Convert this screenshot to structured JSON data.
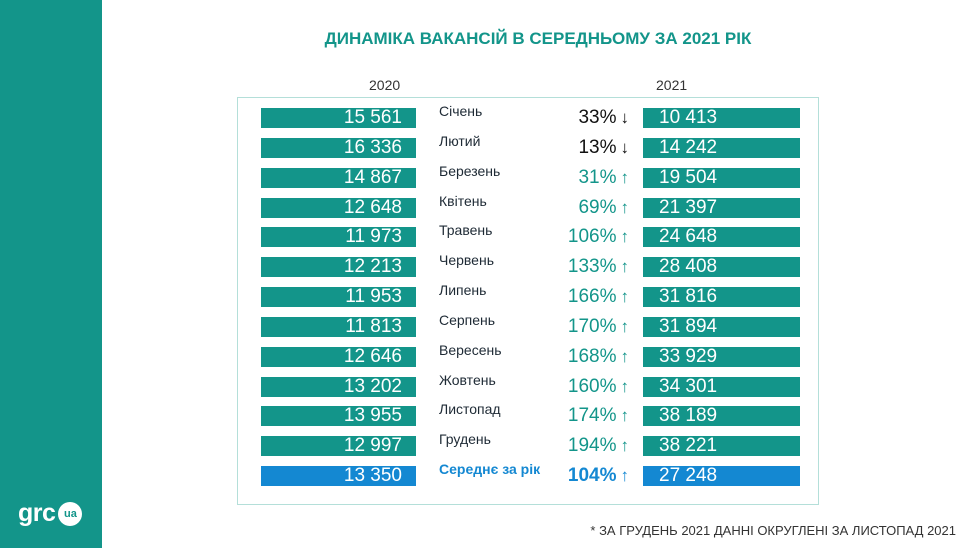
{
  "title": "ДИНАМІКА ВАКАНСІЙ В СЕРЕДНЬОМУ ЗА 2021 РІК",
  "logo": {
    "text": "grc",
    "badge": "ua"
  },
  "footnote": "* ЗА ГРУДЕНЬ 2021 ДАННІ ОКРУГЛЕНІ ЗА ЛИСТОПАД 2021",
  "colors": {
    "teal": "#13958a",
    "blue": "#1488d2",
    "panel_border": "#b4dfd9"
  },
  "chart_data": {
    "type": "table",
    "title": "ДИНАМІКА ВАКАНСІЙ В СЕРЕДНЬОМУ ЗА 2021 РІК",
    "columns": [
      "2020",
      "",
      "",
      "2021"
    ],
    "rows": [
      {
        "month": "Січень",
        "v2020": "15 561",
        "change": "33%",
        "direction": "down",
        "v2021": "10 413"
      },
      {
        "month": "Лютий",
        "v2020": "16 336",
        "change": "13%",
        "direction": "down",
        "v2021": "14 242"
      },
      {
        "month": "Березень",
        "v2020": "14 867",
        "change": "31%",
        "direction": "up",
        "v2021": "19 504"
      },
      {
        "month": "Квітень",
        "v2020": "12 648",
        "change": "69%",
        "direction": "up",
        "v2021": "21 397"
      },
      {
        "month": "Травень",
        "v2020": "11 973",
        "change": "106%",
        "direction": "up",
        "v2021": "24 648"
      },
      {
        "month": "Червень",
        "v2020": "12 213",
        "change": "133%",
        "direction": "up",
        "v2021": "28 408"
      },
      {
        "month": "Липень",
        "v2020": "11 953",
        "change": "166%",
        "direction": "up",
        "v2021": "31 816"
      },
      {
        "month": "Серпень",
        "v2020": "11 813",
        "change": "170%",
        "direction": "up",
        "v2021": "31 894"
      },
      {
        "month": "Вересень",
        "v2020": "12 646",
        "change": "168%",
        "direction": "up",
        "v2021": "33 929"
      },
      {
        "month": "Жовтень",
        "v2020": "13 202",
        "change": "160%",
        "direction": "up",
        "v2021": "34 301"
      },
      {
        "month": "Листопад",
        "v2020": "13 955",
        "change": "174%",
        "direction": "up",
        "v2021": "38 189"
      },
      {
        "month": "Грудень",
        "v2020": "12 997",
        "change": "194%",
        "direction": "up",
        "v2021": "38 221"
      }
    ],
    "average": {
      "month": "Середнє за рік",
      "v2020": "13 350",
      "change": "104%",
      "direction": "up",
      "v2021": "27 248"
    }
  }
}
